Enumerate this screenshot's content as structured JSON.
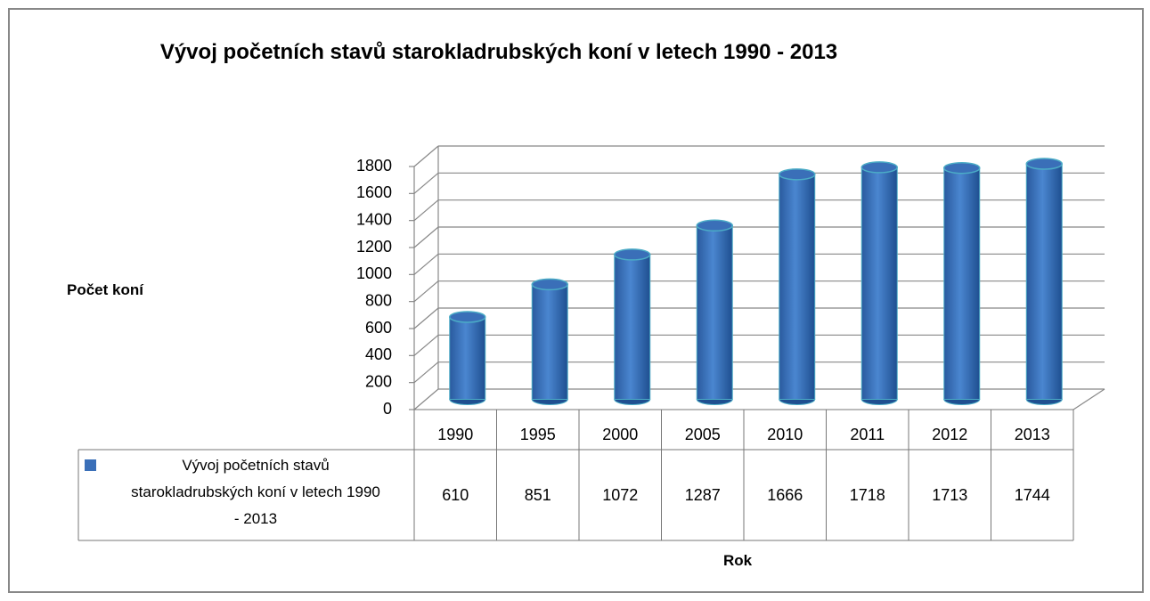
{
  "chart_data": {
    "type": "bar3d",
    "title": "Vývoj početních stavů starokladrubských koní v letech 1990 - 2013",
    "y_label": "Počet koní",
    "x_label": "Rok",
    "categories": [
      "1990",
      "1995",
      "2000",
      "2005",
      "2010",
      "2011",
      "2012",
      "2013"
    ],
    "series": [
      {
        "name": "Vývoj početních stavů starokladrubských koní v letech 1990 - 2013",
        "color": "#3a6fb8",
        "values": [
          610,
          851,
          1072,
          1287,
          1666,
          1718,
          1713,
          1744
        ]
      }
    ],
    "ylim": [
      0,
      1800
    ],
    "yticks": [
      0,
      200,
      400,
      600,
      800,
      1000,
      1200,
      1400,
      1600,
      1800
    ],
    "grid": true,
    "data_table": true
  }
}
